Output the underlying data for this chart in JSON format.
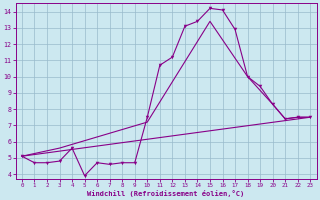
{
  "xlabel": "Windchill (Refroidissement éolien,°C)",
  "background_color": "#cce8f0",
  "line_color": "#880088",
  "grid_color": "#99bbcc",
  "xlim": [
    -0.5,
    23.5
  ],
  "ylim": [
    3.7,
    14.5
  ],
  "xticks": [
    0,
    1,
    2,
    3,
    4,
    5,
    6,
    7,
    8,
    9,
    10,
    11,
    12,
    13,
    14,
    15,
    16,
    17,
    18,
    19,
    20,
    21,
    22,
    23
  ],
  "yticks": [
    4,
    5,
    6,
    7,
    8,
    9,
    10,
    11,
    12,
    13,
    14
  ],
  "series1_x": [
    0,
    1,
    2,
    3,
    4,
    5,
    6,
    7,
    8,
    9,
    10,
    11,
    12,
    13,
    14,
    15,
    16,
    17,
    18,
    19,
    20,
    21,
    22,
    23
  ],
  "series1_y": [
    5.1,
    4.7,
    4.7,
    4.8,
    5.6,
    3.9,
    4.7,
    4.6,
    4.7,
    4.7,
    7.5,
    10.7,
    11.2,
    13.1,
    13.4,
    14.2,
    14.1,
    12.9,
    10.0,
    9.4,
    8.3,
    7.4,
    7.5,
    7.5
  ],
  "series2_x": [
    0,
    23
  ],
  "series2_y": [
    5.1,
    7.5
  ],
  "series3_x": [
    0,
    3,
    10,
    15,
    18,
    20,
    21,
    22,
    23
  ],
  "series3_y": [
    5.1,
    5.6,
    7.2,
    13.4,
    10.0,
    8.3,
    7.4,
    7.5,
    7.5
  ]
}
